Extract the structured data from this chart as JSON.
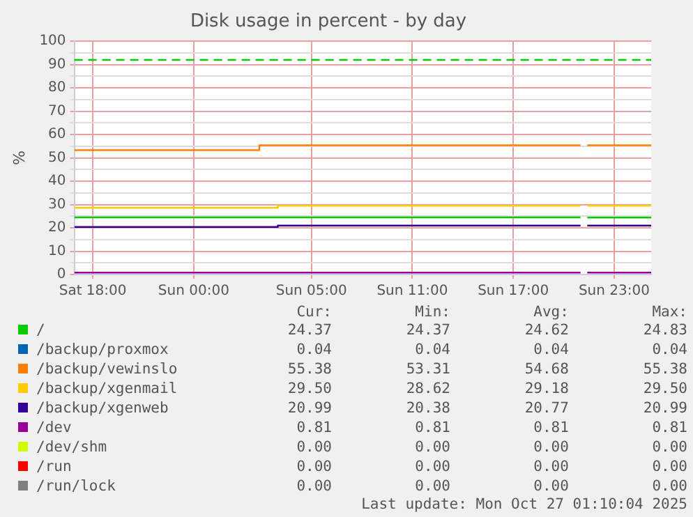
{
  "chart_data": {
    "type": "step",
    "title": "Disk usage in percent - by day",
    "ylabel": "%",
    "xlim": [
      "2025-10-25T14:54",
      "2025-10-27T01:12"
    ],
    "xticks": [
      {
        "value": "2025-10-25T16:00",
        "label": "Sat 18:00"
      },
      {
        "value": "2025-10-25T22:00",
        "label": "Sun 00:00"
      },
      {
        "value": "2025-10-26T05:00",
        "label": "Sun 05:00"
      },
      {
        "value": "2025-10-26T11:00",
        "label": "Sun 11:00"
      },
      {
        "value": "2025-10-26T17:00",
        "label": "Sun 17:00"
      },
      {
        "value": "2025-10-26T23:00",
        "label": "Sun 23:00"
      }
    ],
    "ylim": [
      0,
      100
    ],
    "yticks": [
      0,
      {
        "value": 5,
        "label": null
      },
      10,
      {
        "value": 15,
        "label": null
      },
      20,
      {
        "value": 25,
        "label": null
      },
      30,
      {
        "value": 35,
        "label": null
      },
      40,
      {
        "value": 45,
        "label": null
      },
      50,
      {
        "value": 55,
        "label": null
      },
      60,
      {
        "value": 65,
        "label": null
      },
      70,
      {
        "value": 75,
        "label": null
      },
      80,
      {
        "value": 85,
        "label": null
      },
      90,
      {
        "value": 95,
        "label": null
      },
      100
    ],
    "grid": true,
    "legend": "bottom",
    "marker": "none",
    "line_style": "solid",
    "ref_lines": [
      {
        "axis": "y",
        "value": 92,
        "color": "#00cc00",
        "line_style": "dashed"
      }
    ],
    "series": [
      {
        "name": "/",
        "color": "#00cc00",
        "x": [
          "2025-10-25T14:54",
          "2025-10-26T21:00",
          "2025-10-26T21:12",
          "2025-10-26T21:24",
          "2025-10-27T01:12"
        ],
        "values": [
          24.5,
          24.5,
          null,
          24.4,
          24.4
        ]
      },
      {
        "name": "/backup/proxmox",
        "color": "#0066b3"
      },
      {
        "name": "/backup/vewinslo",
        "color": "#ff8000",
        "x": [
          "2025-10-25T14:54",
          "2025-10-26T01:54",
          "2025-10-26T21:00",
          "2025-10-26T21:12",
          "2025-10-26T21:24",
          "2025-10-27T01:12"
        ],
        "values": [
          53.3,
          55.4,
          55.4,
          null,
          55.4,
          55.4
        ]
      },
      {
        "name": "/backup/xgenmail",
        "color": "#ffcc00",
        "x": [
          "2025-10-25T14:54",
          "2025-10-26T03:00",
          "2025-10-26T21:00",
          "2025-10-26T21:12",
          "2025-10-26T21:24",
          "2025-10-27T01:12"
        ],
        "values": [
          28.6,
          29.5,
          29.5,
          null,
          29.5,
          29.5
        ]
      },
      {
        "name": "/backup/xgenweb",
        "color": "#330099",
        "x": [
          "2025-10-25T14:54",
          "2025-10-26T03:00",
          "2025-10-26T21:00",
          "2025-10-26T21:12",
          "2025-10-26T21:24",
          "2025-10-27T01:12"
        ],
        "values": [
          20.4,
          21.0,
          21.0,
          null,
          21.0,
          21.0
        ]
      },
      {
        "name": "/dev",
        "color": "#990099",
        "x": [
          "2025-10-25T14:54",
          "2025-10-26T21:00",
          "2025-10-26T21:12",
          "2025-10-26T21:24",
          "2025-10-27T01:12"
        ],
        "values": [
          0.8,
          0.8,
          null,
          0.8,
          0.8
        ]
      },
      {
        "name": "/dev/shm",
        "color": "#ccff00"
      },
      {
        "name": "/run",
        "color": "#ff0000"
      },
      {
        "name": "/run/lock",
        "color": "#808080"
      }
    ],
    "annotations": [
      "Cur:",
      "Min:",
      "Avg:",
      "Max:",
      "24.37",
      "24.37",
      "24.62",
      "24.83",
      "0.04",
      "0.04",
      "0.04",
      "0.04",
      "55.38",
      "53.31",
      "54.68",
      "55.38",
      "29.50",
      "28.62",
      "29.18",
      "29.50",
      "20.99",
      "20.38",
      "20.77",
      "20.99",
      "0.81",
      "0.81",
      "0.81",
      "0.81",
      "0.00",
      "0.00",
      "0.00",
      "0.00",
      "0.00",
      "0.00",
      "0.00",
      "0.00",
      "0.00",
      "0.00",
      "0.00",
      "0.00",
      "Last update: Mon Oct 27 01:10:04 2025"
    ]
  }
}
